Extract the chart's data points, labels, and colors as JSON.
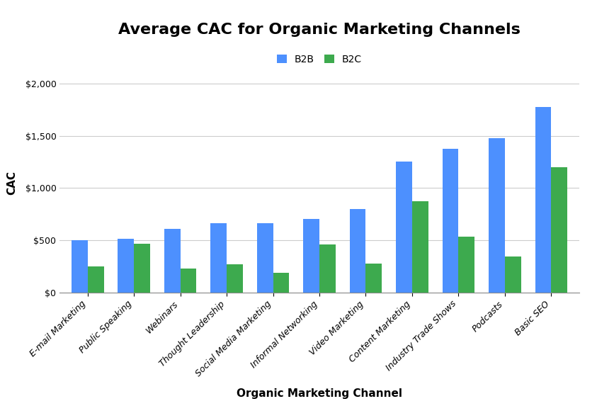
{
  "title": "Average CAC for Organic Marketing Channels",
  "xlabel": "Organic Marketing Channel",
  "ylabel": "CAC",
  "categories": [
    "E-mail Marketing",
    "Public Speaking",
    "Webinars",
    "Thought Leadership",
    "Social Media Marketing",
    "Informal Networking",
    "Video Marketing",
    "Content Marketing",
    "Industry Trade Shows",
    "Podcasts",
    "Basic SEO"
  ],
  "b2b_values": [
    500,
    515,
    610,
    660,
    660,
    700,
    800,
    1250,
    1375,
    1475,
    1775
  ],
  "b2c_values": [
    250,
    465,
    230,
    270,
    185,
    460,
    275,
    875,
    535,
    340,
    1200
  ],
  "b2b_color": "#4d90fe",
  "b2c_color": "#3DAA4E",
  "background_color": "#FFFFFF",
  "grid_color": "#CCCCCC",
  "ylim": [
    0,
    2100
  ],
  "yticks": [
    0,
    500,
    1000,
    1500,
    2000
  ],
  "bar_width": 0.35,
  "legend_labels": [
    "B2B",
    "B2C"
  ],
  "title_fontsize": 16,
  "axis_label_fontsize": 11,
  "tick_fontsize": 9,
  "legend_fontsize": 10,
  "xtick_rotation": 45
}
